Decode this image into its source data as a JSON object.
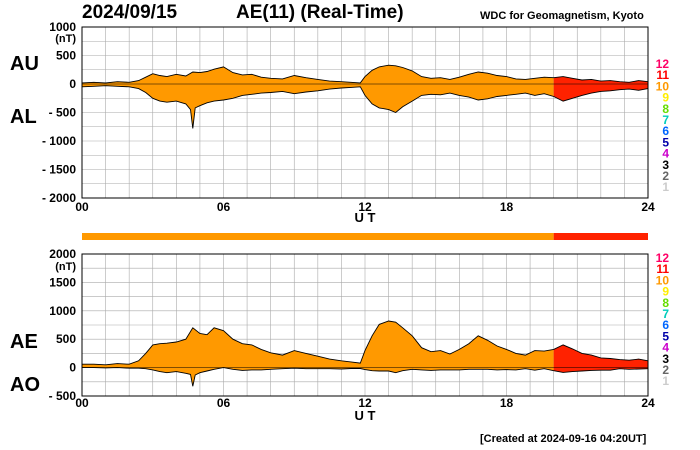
{
  "header": {
    "date": "2024/09/15",
    "title": "AE(11) (Real-Time)",
    "credit": "WDC for Geomagnetism, Kyoto"
  },
  "footer": {
    "created": "[Created at 2024-09-16 04:20UT]"
  },
  "colors": {
    "level_10": "#ff9900",
    "level_11": "#ff2200",
    "grid": "#aaaaaa",
    "outline": "#000000"
  },
  "level_scale": {
    "labels": [
      "12",
      "11",
      "10",
      "9",
      "8",
      "7",
      "6",
      "5",
      "4",
      "3",
      "2",
      "1"
    ],
    "colors": [
      "#ff0066",
      "#ff0000",
      "#ff9900",
      "#ffee00",
      "#66dd00",
      "#00ccbb",
      "#0066ff",
      "#0000aa",
      "#cc00cc",
      "#000000",
      "#666666",
      "#cccccc"
    ]
  },
  "quality_bar": {
    "segments": [
      {
        "from": 0,
        "to": 20,
        "color": "#ff9900"
      },
      {
        "from": 20,
        "to": 24,
        "color": "#ff2200"
      }
    ]
  },
  "chart_data": [
    {
      "type": "area",
      "upper_label": "AU",
      "lower_label": "AL",
      "unit": "(nT)",
      "xlabel": "U T",
      "xlim": [
        0,
        24
      ],
      "xticks": [
        "00",
        "06",
        "12",
        "18",
        "24"
      ],
      "ylim": [
        -2000,
        1000
      ],
      "yticks": [
        "1000",
        "500",
        "0",
        "- 500",
        "- 1000",
        "- 1500",
        "- 2000"
      ],
      "series": [
        {
          "name": "AU",
          "x": [
            0,
            0.5,
            1,
            1.5,
            2,
            2.4,
            2.7,
            3,
            3.3,
            3.6,
            4,
            4.4,
            4.7,
            5,
            5.3,
            5.6,
            6,
            6.4,
            6.8,
            7.2,
            7.6,
            8,
            8.5,
            9,
            9.5,
            10,
            10.5,
            11,
            11.4,
            11.8,
            12,
            12.3,
            12.6,
            13,
            13.3,
            13.6,
            14,
            14.4,
            14.8,
            15.2,
            15.6,
            16,
            16.4,
            16.8,
            17.2,
            17.6,
            18,
            18.4,
            18.8,
            19.2,
            19.6,
            20,
            20.4,
            20.8,
            21.2,
            21.6,
            22,
            22.4,
            22.8,
            23.2,
            23.6,
            24
          ],
          "y": [
            20,
            30,
            20,
            40,
            30,
            60,
            120,
            180,
            150,
            130,
            170,
            140,
            210,
            200,
            220,
            260,
            300,
            200,
            160,
            170,
            120,
            100,
            90,
            150,
            110,
            80,
            50,
            40,
            30,
            20,
            130,
            240,
            300,
            330,
            320,
            290,
            230,
            130,
            100,
            110,
            80,
            120,
            170,
            210,
            190,
            150,
            130,
            90,
            80,
            100,
            120,
            110,
            130,
            100,
            70,
            80,
            50,
            60,
            40,
            30,
            60,
            40
          ]
        },
        {
          "name": "AL",
          "x": [
            0,
            0.5,
            1,
            1.5,
            2,
            2.4,
            2.7,
            3,
            3.3,
            3.6,
            4,
            4.4,
            4.6,
            4.7,
            4.8,
            5,
            5.3,
            5.6,
            6,
            6.4,
            6.8,
            7.2,
            7.6,
            8,
            8.5,
            9,
            9.5,
            10,
            10.5,
            11,
            11.4,
            11.8,
            12,
            12.3,
            12.6,
            13,
            13.3,
            13.6,
            14,
            14.4,
            14.8,
            15.2,
            15.6,
            16,
            16.4,
            16.8,
            17.2,
            17.6,
            18,
            18.4,
            18.8,
            19.2,
            19.6,
            20,
            20.4,
            20.8,
            21.2,
            21.6,
            22,
            22.4,
            22.8,
            23.2,
            23.6,
            24
          ],
          "y": [
            -50,
            -40,
            -30,
            -40,
            -50,
            -80,
            -150,
            -250,
            -300,
            -320,
            -300,
            -350,
            -450,
            -780,
            -420,
            -380,
            -330,
            -300,
            -280,
            -250,
            -200,
            -180,
            -160,
            -150,
            -130,
            -170,
            -140,
            -120,
            -90,
            -70,
            -60,
            -50,
            -200,
            -350,
            -420,
            -450,
            -500,
            -400,
            -300,
            -200,
            -180,
            -190,
            -160,
            -200,
            -230,
            -280,
            -260,
            -220,
            -200,
            -180,
            -160,
            -200,
            -170,
            -220,
            -300,
            -250,
            -200,
            -160,
            -130,
            -120,
            -100,
            -90,
            -110,
            -80
          ]
        }
      ]
    },
    {
      "type": "area",
      "upper_label": "AE",
      "lower_label": "AO",
      "unit": "(nT)",
      "xlabel": "U T",
      "xlim": [
        0,
        24
      ],
      "xticks": [
        "00",
        "06",
        "12",
        "18",
        "24"
      ],
      "ylim": [
        -500,
        2000
      ],
      "yticks": [
        "2000",
        "1500",
        "1000",
        "500",
        "0",
        "- 500"
      ],
      "series": [
        {
          "name": "AE",
          "x": [
            0,
            0.5,
            1,
            1.5,
            2,
            2.4,
            2.7,
            3,
            3.3,
            3.6,
            4,
            4.4,
            4.7,
            5,
            5.3,
            5.6,
            6,
            6.4,
            6.8,
            7.2,
            7.6,
            8,
            8.5,
            9,
            9.5,
            10,
            10.5,
            11,
            11.4,
            11.8,
            12,
            12.3,
            12.6,
            13,
            13.3,
            13.6,
            14,
            14.4,
            14.8,
            15.2,
            15.6,
            16,
            16.4,
            16.8,
            17.2,
            17.6,
            18,
            18.4,
            18.8,
            19.2,
            19.6,
            20,
            20.4,
            20.8,
            21.2,
            21.6,
            22,
            22.4,
            22.8,
            23.2,
            23.6,
            24
          ],
          "y": [
            60,
            60,
            50,
            70,
            60,
            120,
            250,
            400,
            420,
            430,
            450,
            500,
            700,
            600,
            580,
            700,
            650,
            500,
            420,
            400,
            320,
            260,
            220,
            300,
            250,
            200,
            150,
            120,
            100,
            80,
            300,
            560,
            760,
            820,
            800,
            700,
            560,
            350,
            280,
            300,
            240,
            320,
            420,
            560,
            480,
            380,
            320,
            250,
            220,
            300,
            290,
            320,
            400,
            330,
            250,
            220,
            170,
            160,
            140,
            130,
            150,
            120
          ]
        },
        {
          "name": "AO",
          "x": [
            0,
            0.5,
            1,
            1.5,
            2,
            2.4,
            2.7,
            3,
            3.3,
            3.6,
            4,
            4.4,
            4.6,
            4.7,
            4.8,
            5,
            5.3,
            5.6,
            6,
            6.4,
            6.8,
            7.2,
            7.6,
            8,
            8.5,
            9,
            9.5,
            10,
            10.5,
            11,
            11.4,
            11.8,
            12,
            12.3,
            12.6,
            13,
            13.3,
            13.6,
            14,
            14.4,
            14.8,
            15.2,
            15.6,
            16,
            16.4,
            16.8,
            17.2,
            17.6,
            18,
            18.4,
            18.8,
            19.2,
            19.6,
            20,
            20.4,
            20.8,
            21.2,
            21.6,
            22,
            22.4,
            22.8,
            23.2,
            23.6,
            24
          ],
          "y": [
            0,
            0,
            -5,
            0,
            -10,
            -10,
            -20,
            -40,
            -70,
            -90,
            -70,
            -100,
            -120,
            -330,
            -130,
            -90,
            -60,
            -30,
            0,
            -30,
            -50,
            -40,
            -40,
            -30,
            -20,
            -10,
            -20,
            -20,
            -20,
            -25,
            -15,
            -15,
            -35,
            -55,
            -60,
            -60,
            -90,
            -55,
            -30,
            -40,
            -50,
            -40,
            -40,
            -40,
            -30,
            -30,
            -30,
            -40,
            -35,
            -40,
            -20,
            -45,
            -20,
            -55,
            -85,
            -70,
            -60,
            -50,
            -45,
            -45,
            -20,
            -30,
            -25,
            -20
          ]
        }
      ]
    }
  ]
}
